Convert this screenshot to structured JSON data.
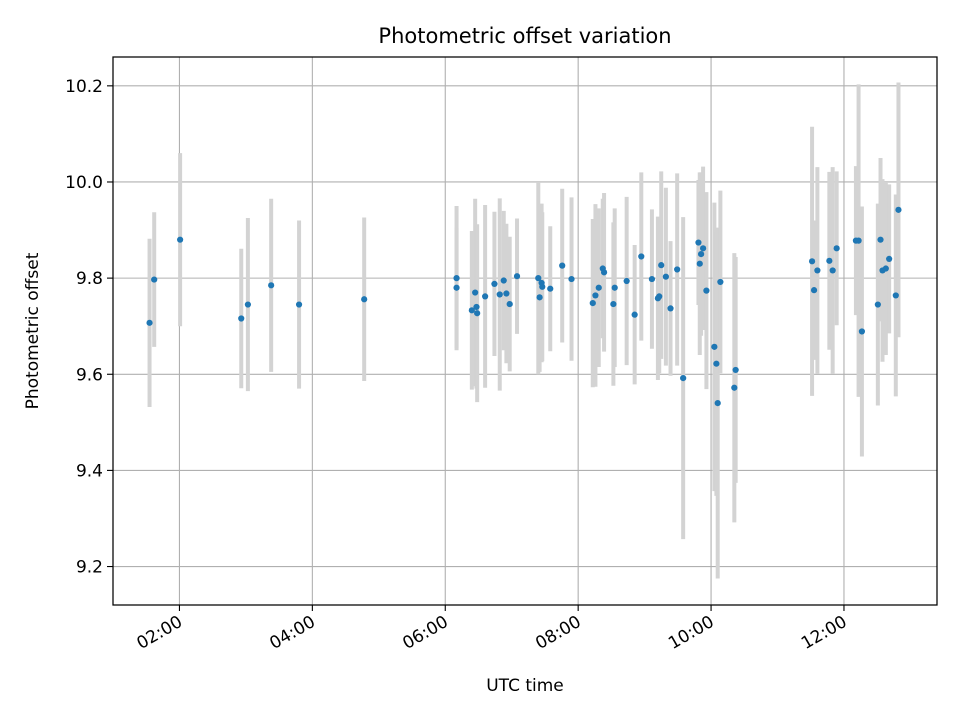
{
  "chart_data": {
    "type": "scatter",
    "title": "Photometric offset variation",
    "xlabel": "UTC time",
    "ylabel": "Photometric offset",
    "xlim_hours": [
      1.0,
      13.4
    ],
    "ylim": [
      9.12,
      10.26
    ],
    "grid": true,
    "x_ticks": [
      {
        "value": 2,
        "label": "02:00"
      },
      {
        "value": 4,
        "label": "04:00"
      },
      {
        "value": 6,
        "label": "06:00"
      },
      {
        "value": 8,
        "label": "08:00"
      },
      {
        "value": 10,
        "label": "10:00"
      },
      {
        "value": 12,
        "label": "12:00"
      }
    ],
    "y_ticks": [
      {
        "value": 9.2,
        "label": "9.2"
      },
      {
        "value": 9.4,
        "label": "9.4"
      },
      {
        "value": 9.6,
        "label": "9.6"
      },
      {
        "value": 9.8,
        "label": "9.8"
      },
      {
        "value": 10.0,
        "label": "10.0"
      },
      {
        "value": 10.2,
        "label": "10.2"
      }
    ],
    "point_color": "#1f77b4",
    "errorbar_color": "#d3d3d3",
    "series": [
      {
        "name": "offset",
        "x": [
          1.55,
          1.62,
          2.01,
          2.93,
          3.03,
          3.38,
          3.8,
          4.78,
          6.17,
          6.17,
          6.4,
          6.45,
          6.47,
          6.48,
          6.6,
          6.74,
          6.82,
          6.88,
          6.92,
          6.97,
          7.08,
          7.4,
          7.42,
          7.45,
          7.46,
          7.58,
          7.76,
          7.9,
          8.22,
          8.26,
          8.31,
          8.37,
          8.39,
          8.53,
          8.55,
          8.73,
          8.85,
          8.95,
          9.11,
          9.2,
          9.22,
          9.25,
          9.32,
          9.39,
          9.49,
          9.58,
          9.81,
          9.83,
          9.85,
          9.88,
          9.93,
          10.05,
          10.08,
          10.1,
          10.14,
          10.35,
          10.37,
          11.52,
          11.55,
          11.6,
          11.78,
          11.83,
          11.89,
          12.18,
          12.22,
          12.27,
          12.51,
          12.55,
          12.58,
          12.63,
          12.68,
          12.78,
          12.82
        ],
        "y": [
          9.707,
          9.797,
          9.88,
          9.716,
          9.745,
          9.785,
          9.745,
          9.756,
          9.8,
          9.78,
          9.733,
          9.77,
          9.74,
          9.727,
          9.762,
          9.788,
          9.766,
          9.795,
          9.768,
          9.746,
          9.804,
          9.8,
          9.76,
          9.79,
          9.782,
          9.778,
          9.826,
          9.798,
          9.748,
          9.764,
          9.78,
          9.82,
          9.812,
          9.746,
          9.78,
          9.794,
          9.724,
          9.845,
          9.798,
          9.758,
          9.762,
          9.827,
          9.803,
          9.737,
          9.818,
          9.592,
          9.874,
          9.83,
          9.85,
          9.862,
          9.774,
          9.657,
          9.622,
          9.54,
          9.792,
          9.572,
          9.609,
          9.835,
          9.775,
          9.816,
          9.836,
          9.816,
          9.862,
          9.878,
          9.878,
          9.689,
          9.745,
          9.88,
          9.816,
          9.82,
          9.84,
          9.764,
          9.942
        ],
        "yerr": [
          0.175,
          0.14,
          0.18,
          0.145,
          0.18,
          0.18,
          0.175,
          0.17,
          0.15,
          0.125,
          0.165,
          0.195,
          0.17,
          0.185,
          0.19,
          0.15,
          0.2,
          0.145,
          0.145,
          0.14,
          0.12,
          0.2,
          0.155,
          0.165,
          0.155,
          0.13,
          0.16,
          0.17,
          0.175,
          0.19,
          0.165,
          0.145,
          0.165,
          0.17,
          0.165,
          0.175,
          0.145,
          0.175,
          0.145,
          0.17,
          0.16,
          0.195,
          0.185,
          0.14,
          0.2,
          0.335,
          0.13,
          0.19,
          0.17,
          0.17,
          0.205,
          0.3,
          0.275,
          0.365,
          0.19,
          0.28,
          0.235,
          0.28,
          0.145,
          0.215,
          0.185,
          0.215,
          0.16,
          0.155,
          0.325,
          0.26,
          0.21,
          0.17,
          0.19,
          0.18,
          0.155,
          0.21,
          0.265
        ]
      }
    ]
  }
}
